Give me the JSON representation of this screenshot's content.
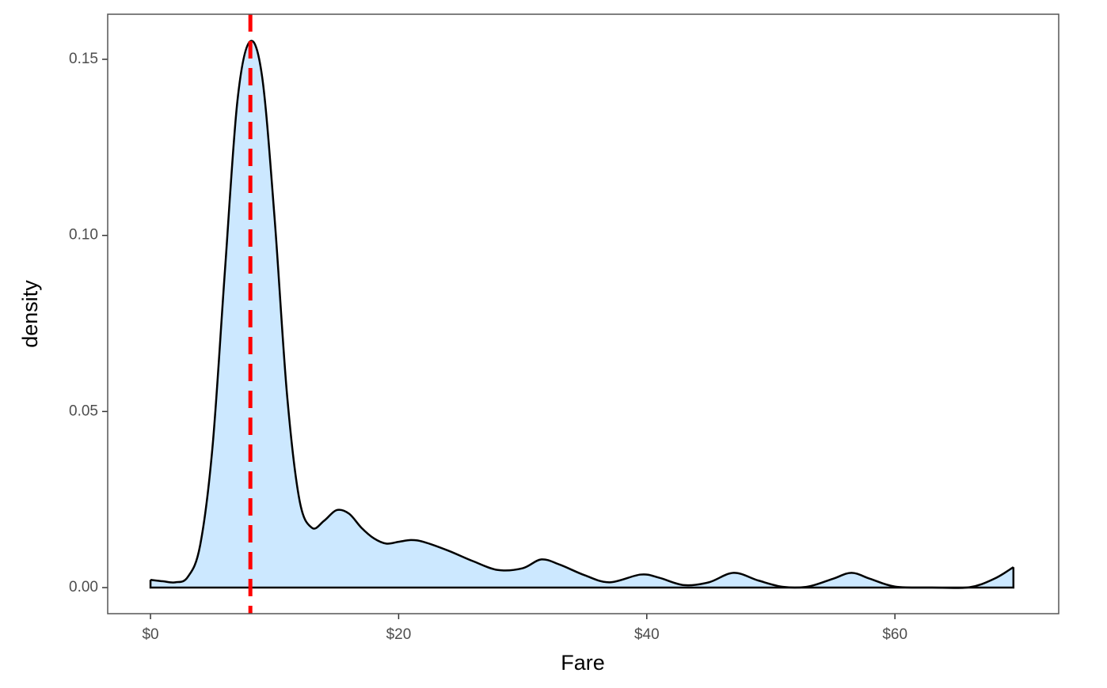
{
  "chart_data": {
    "type": "density",
    "x_label": "Fare",
    "y_label": "density",
    "x": [
      0,
      1,
      2,
      3,
      4,
      5,
      6,
      7,
      8,
      9,
      10,
      11,
      12,
      13,
      14,
      15,
      16,
      17,
      18,
      19,
      20,
      21,
      22,
      24,
      26,
      28,
      30,
      31.5,
      33,
      35,
      37,
      39.5,
      41,
      43,
      45,
      47,
      49,
      51,
      53,
      55,
      56.5,
      58,
      60,
      63,
      66,
      68,
      69.55
    ],
    "values": [
      0.0022,
      0.0018,
      0.0015,
      0.003,
      0.012,
      0.04,
      0.09,
      0.138,
      0.155,
      0.145,
      0.105,
      0.055,
      0.025,
      0.017,
      0.019,
      0.022,
      0.021,
      0.017,
      0.014,
      0.0125,
      0.013,
      0.0135,
      0.013,
      0.0105,
      0.0075,
      0.005,
      0.0055,
      0.008,
      0.0065,
      0.0035,
      0.0015,
      0.0037,
      0.0028,
      0.0007,
      0.0015,
      0.0042,
      0.002,
      0.0002,
      0.0003,
      0.0025,
      0.0042,
      0.0025,
      0.0003,
      0,
      0.0001,
      0.0025,
      0.0058
    ],
    "fill": "#cce8ff",
    "line_color": "#000000",
    "vline": {
      "x": 8.05,
      "color": "#ff0000",
      "dashed": true
    },
    "xlim": [
      -3.45,
      73.2
    ],
    "ylim": [
      -0.0074,
      0.1628
    ],
    "xticks": [
      {
        "value": 0,
        "label": "$0"
      },
      {
        "value": 20,
        "label": "$20"
      },
      {
        "value": 40,
        "label": "$40"
      },
      {
        "value": 60,
        "label": "$60"
      }
    ],
    "yticks": [
      {
        "value": 0,
        "label": "0.00"
      },
      {
        "value": 0.05,
        "label": "0.05"
      },
      {
        "value": 0.1,
        "label": "0.10"
      },
      {
        "value": 0.15,
        "label": "0.15"
      }
    ],
    "grid": false
  }
}
